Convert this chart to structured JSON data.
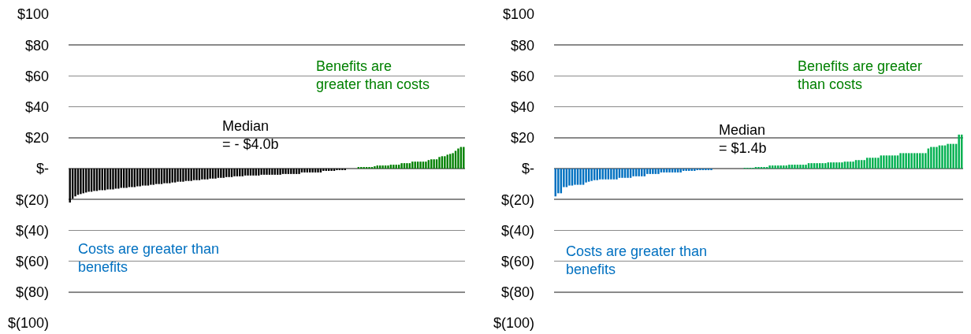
{
  "chart_data": [
    {
      "type": "bar",
      "categories": [
        null,
        null,
        null,
        null,
        null,
        null,
        null,
        null,
        null,
        null,
        null,
        null,
        null,
        null,
        null,
        null,
        null,
        null,
        null,
        null,
        null,
        null,
        null,
        null,
        null,
        null,
        null,
        null,
        null,
        null,
        null,
        null,
        null,
        null,
        null,
        null,
        null,
        null,
        null,
        null,
        null,
        null,
        null,
        null,
        null,
        null,
        null,
        null,
        null,
        null,
        null,
        null,
        null,
        null,
        null,
        null,
        null,
        null,
        null,
        null,
        null,
        null,
        null,
        null,
        null,
        null,
        null,
        null,
        null,
        null,
        null,
        null,
        null,
        null,
        null,
        null,
        null,
        null,
        null,
        null,
        null,
        null,
        null,
        null,
        null,
        null,
        null,
        null,
        null,
        null,
        null,
        null,
        null,
        null,
        null,
        null,
        null,
        null,
        null,
        null,
        null,
        null,
        null,
        null,
        null,
        null,
        null,
        null,
        null,
        null,
        null,
        null,
        null,
        null,
        null,
        null,
        null,
        null,
        null,
        null,
        null,
        null,
        null,
        null,
        null,
        null,
        null,
        null,
        null,
        null,
        null,
        null,
        null,
        null,
        null,
        null,
        null,
        null,
        null,
        null,
        null,
        null,
        null,
        null,
        null,
        null,
        null
      ],
      "values": [
        -22,
        -19.5,
        -18,
        -17,
        -16.5,
        -16,
        -15.5,
        -15,
        -15,
        -14.5,
        -14.5,
        -14,
        -14,
        -14,
        -13.5,
        -13.5,
        -13.5,
        -13,
        -13,
        -12.5,
        -12.5,
        -12.5,
        -12,
        -12,
        -12,
        -11.5,
        -11.5,
        -11,
        -11,
        -11,
        -10.5,
        -10.5,
        -10,
        -10,
        -10,
        -9.5,
        -9.5,
        -9.5,
        -9,
        -9,
        -8.5,
        -8.5,
        -8.5,
        -8,
        -8,
        -8,
        -7.5,
        -7.5,
        -7.5,
        -7,
        -7,
        -7,
        -6.5,
        -6.5,
        -6.5,
        -6,
        -6,
        -6,
        -5.5,
        -5.5,
        -5.5,
        -5,
        -5,
        -5,
        -5,
        -4.5,
        -4.5,
        -4.5,
        -4.5,
        -4.5,
        -4.5,
        -4,
        -4,
        -4,
        -4,
        -4,
        -4,
        -4,
        -4,
        -3.5,
        -3.5,
        -3.5,
        -3.5,
        -3.5,
        -3.5,
        -3.5,
        -2.5,
        -2.5,
        -2.5,
        -2.5,
        -2.5,
        -2.5,
        -2.5,
        -2.5,
        -1.5,
        -1.5,
        -1.5,
        -1.5,
        -1.5,
        -1,
        -1,
        -1,
        -1,
        null,
        null,
        null,
        null,
        1,
        1,
        1,
        1,
        1,
        1,
        1.5,
        2,
        2,
        2,
        2,
        2,
        2.5,
        2.5,
        2.5,
        2.5,
        3.5,
        3.5,
        3.5,
        3.5,
        4.5,
        4.5,
        4.5,
        4.5,
        4.5,
        4.5,
        5.5,
        6,
        6,
        6,
        7.5,
        8,
        8,
        9,
        9.5,
        10,
        11.5,
        13,
        14,
        14
      ],
      "colors": [
        "#000000",
        "#000000",
        "#000000",
        "#000000",
        "#000000",
        "#000000",
        "#000000",
        "#000000",
        "#000000",
        "#000000",
        "#000000",
        "#000000",
        "#000000",
        "#000000",
        "#000000",
        "#000000",
        "#000000",
        "#000000",
        "#000000",
        "#000000",
        "#000000",
        "#000000",
        "#000000",
        "#000000",
        "#000000",
        "#000000",
        "#000000",
        "#000000",
        "#000000",
        "#000000",
        "#000000",
        "#000000",
        "#000000",
        "#000000",
        "#000000",
        "#000000",
        "#000000",
        "#000000",
        "#000000",
        "#000000",
        "#000000",
        "#000000",
        "#000000",
        "#000000",
        "#000000",
        "#000000",
        "#000000",
        "#000000",
        "#000000",
        "#000000",
        "#000000",
        "#000000",
        "#000000",
        "#000000",
        "#000000",
        "#000000",
        "#000000",
        "#000000",
        "#000000",
        "#000000",
        "#000000",
        "#000000",
        "#000000",
        "#000000",
        "#000000",
        "#000000",
        "#000000",
        "#000000",
        "#000000",
        "#000000",
        "#000000",
        "#000000",
        "#000000",
        "#000000",
        "#000000",
        "#000000",
        "#000000",
        "#000000",
        "#000000",
        "#000000",
        "#000000",
        "#000000",
        "#000000",
        "#000000",
        "#000000",
        "#000000",
        "#000000",
        "#000000",
        "#000000",
        "#000000",
        "#000000",
        "#000000",
        "#000000",
        "#000000",
        "#000000",
        "#000000",
        "#000000",
        "#000000",
        "#000000",
        "#000000",
        "#000000",
        "#000000",
        "#000000",
        null,
        null,
        null,
        null,
        "#008000",
        "#008000",
        "#008000",
        "#008000",
        "#008000",
        "#008000",
        "#008000",
        "#008000",
        "#008000",
        "#008000",
        "#008000",
        "#008000",
        "#008000",
        "#008000",
        "#008000",
        "#008000",
        "#008000",
        "#008000",
        "#008000",
        "#008000",
        "#008000",
        "#008000",
        "#008000",
        "#008000",
        "#008000",
        "#008000",
        "#008000",
        "#008000",
        "#008000",
        "#008000",
        "#008000",
        "#008000",
        "#008000",
        "#008000",
        "#008000",
        "#008000",
        "#008000",
        "#008000",
        "#008000",
        "#008000"
      ],
      "ylim": [
        -100,
        100
      ],
      "yticks": [
        {
          "value": 100,
          "label": "$100"
        },
        {
          "value": 80,
          "label": "$80"
        },
        {
          "value": 60,
          "label": "$60"
        },
        {
          "value": 40,
          "label": "$40"
        },
        {
          "value": 20,
          "label": "$20"
        },
        {
          "value": 0,
          "label": "$-"
        },
        {
          "value": -20,
          "label": "$(20)"
        },
        {
          "value": -40,
          "label": "$(40)"
        },
        {
          "value": -60,
          "label": "$(60)"
        },
        {
          "value": -80,
          "label": "$(80)"
        },
        {
          "value": -100,
          "label": "$(100)"
        }
      ],
      "grid": "y",
      "tick_labels": "y",
      "annotations": [
        "Median\n= - $4.0b",
        "Benefits are\ngreater than costs",
        "Costs are greater than\nbenefits"
      ]
    },
    {
      "type": "bar",
      "categories": [
        null,
        null,
        null,
        null,
        null,
        null,
        null,
        null,
        null,
        null,
        null,
        null,
        null,
        null,
        null,
        null,
        null,
        null,
        null,
        null,
        null,
        null,
        null,
        null,
        null,
        null,
        null,
        null,
        null,
        null,
        null,
        null,
        null,
        null,
        null,
        null,
        null,
        null,
        null,
        null,
        null,
        null,
        null,
        null,
        null,
        null,
        null,
        null,
        null,
        null,
        null,
        null,
        null,
        null,
        null,
        null,
        null,
        null,
        null,
        null,
        null,
        null,
        null,
        null,
        null,
        null,
        null,
        null,
        null,
        null,
        null,
        null,
        null,
        null,
        null,
        null,
        null,
        null,
        null,
        null,
        null,
        null,
        null,
        null,
        null,
        null,
        null,
        null,
        null,
        null,
        null,
        null,
        null,
        null,
        null,
        null,
        null,
        null,
        null,
        null,
        null,
        null,
        null,
        null,
        null,
        null,
        null,
        null,
        null,
        null,
        null,
        null,
        null,
        null,
        null,
        null,
        null,
        null,
        null,
        null,
        null,
        null,
        null,
        null,
        null,
        null,
        null,
        null,
        null,
        null,
        null,
        null,
        null,
        null,
        null,
        null,
        null,
        null,
        null,
        null,
        null,
        null,
        null,
        null,
        null,
        null,
        null
      ],
      "values": [
        -18,
        -16,
        -16,
        -12,
        -12,
        -11,
        -11,
        -10.5,
        -10.5,
        -10.5,
        -10.5,
        -9,
        -8.5,
        -8,
        -7.5,
        -7.5,
        -7,
        -7,
        -7,
        -7,
        -7,
        -7,
        -7,
        -6,
        -6,
        -6,
        -6,
        -6,
        -5,
        -5,
        -5,
        -5,
        -5,
        -3.5,
        -3.5,
        -3.5,
        -3.5,
        -3.5,
        -2.5,
        -2.5,
        -2.5,
        -2.5,
        -2.5,
        -2.5,
        -2.5,
        -2.5,
        -1.5,
        -1.5,
        -1.5,
        -1.5,
        -1.5,
        -1,
        -1,
        -1,
        -1,
        -1,
        -1,
        null,
        null,
        null,
        null,
        null,
        null,
        null,
        null,
        null,
        null,
        null,
        0.5,
        0.5,
        0.5,
        0.5,
        1,
        1,
        1,
        1,
        1,
        2,
        2,
        2,
        2,
        2,
        2,
        2,
        2.5,
        2.5,
        2.5,
        2.5,
        2.5,
        2.5,
        2.5,
        3.5,
        3.5,
        3.5,
        3.5,
        3.5,
        3.5,
        3.5,
        4,
        4,
        4,
        4,
        4,
        4,
        4.5,
        4.5,
        4.5,
        4.5,
        5.5,
        5.5,
        5.5,
        5.5,
        7,
        7,
        7,
        7,
        7,
        8.5,
        8.5,
        8.5,
        8.5,
        8.5,
        8.5,
        8.5,
        10,
        10,
        10,
        10,
        10,
        10,
        10,
        10,
        10,
        10,
        13,
        14,
        14,
        14,
        15,
        15,
        15,
        16,
        16,
        16,
        16,
        22,
        22
      ],
      "colors": [
        "#0070c0",
        "#0070c0",
        "#0070c0",
        "#0070c0",
        "#0070c0",
        "#0070c0",
        "#0070c0",
        "#0070c0",
        "#0070c0",
        "#0070c0",
        "#0070c0",
        "#0070c0",
        "#0070c0",
        "#0070c0",
        "#0070c0",
        "#0070c0",
        "#0070c0",
        "#0070c0",
        "#0070c0",
        "#0070c0",
        "#0070c0",
        "#0070c0",
        "#0070c0",
        "#0070c0",
        "#0070c0",
        "#0070c0",
        "#0070c0",
        "#0070c0",
        "#0070c0",
        "#0070c0",
        "#0070c0",
        "#0070c0",
        "#0070c0",
        "#0070c0",
        "#0070c0",
        "#0070c0",
        "#0070c0",
        "#0070c0",
        "#0070c0",
        "#0070c0",
        "#0070c0",
        "#0070c0",
        "#0070c0",
        "#0070c0",
        "#0070c0",
        "#0070c0",
        "#0070c0",
        "#0070c0",
        "#0070c0",
        "#0070c0",
        "#0070c0",
        "#0070c0",
        "#0070c0",
        "#0070c0",
        "#0070c0",
        "#0070c0",
        "#0070c0",
        null,
        null,
        null,
        null,
        null,
        null,
        null,
        null,
        null,
        null,
        null,
        "#00b050",
        "#00b050",
        "#00b050",
        "#00b050",
        "#00b050",
        "#00b050",
        "#00b050",
        "#00b050",
        "#00b050",
        "#00b050",
        "#00b050",
        "#00b050",
        "#00b050",
        "#00b050",
        "#00b050",
        "#00b050",
        "#00b050",
        "#00b050",
        "#00b050",
        "#00b050",
        "#00b050",
        "#00b050",
        "#00b050",
        "#00b050",
        "#00b050",
        "#00b050",
        "#00b050",
        "#00b050",
        "#00b050",
        "#00b050",
        "#00b050",
        "#00b050",
        "#00b050",
        "#00b050",
        "#00b050",
        "#00b050",
        "#00b050",
        "#00b050",
        "#00b050",
        "#00b050",
        "#00b050",
        "#00b050",
        "#00b050",
        "#00b050",
        "#00b050",
        "#00b050",
        "#00b050",
        "#00b050",
        "#00b050",
        "#00b050",
        "#00b050",
        "#00b050",
        "#00b050",
        "#00b050",
        "#00b050",
        "#00b050",
        "#00b050",
        "#00b050",
        "#00b050",
        "#00b050",
        "#00b050",
        "#00b050",
        "#00b050",
        "#00b050",
        "#00b050",
        "#00b050",
        "#00b050",
        "#00b050",
        "#00b050",
        "#00b050",
        "#00b050",
        "#00b050",
        "#00b050",
        "#00b050",
        "#00b050",
        "#00b050",
        "#00b050",
        "#00b050",
        "#00b050"
      ],
      "ylim": [
        -100,
        100
      ],
      "yticks": [
        {
          "value": 100,
          "label": "$100"
        },
        {
          "value": 80,
          "label": "$80"
        },
        {
          "value": 60,
          "label": "$60"
        },
        {
          "value": 40,
          "label": "$40"
        },
        {
          "value": 20,
          "label": "$20"
        },
        {
          "value": 0,
          "label": "$-"
        },
        {
          "value": -20,
          "label": "$(20)"
        },
        {
          "value": -40,
          "label": "$(40)"
        },
        {
          "value": -60,
          "label": "$(60)"
        },
        {
          "value": -80,
          "label": "$(80)"
        },
        {
          "value": -100,
          "label": "$(100)"
        }
      ],
      "grid": "y",
      "tick_labels": "y",
      "annotations": [
        "Median\n= $1.4b",
        "Benefits are greater\nthan costs",
        "Costs are greater than\nbenefits"
      ]
    }
  ]
}
